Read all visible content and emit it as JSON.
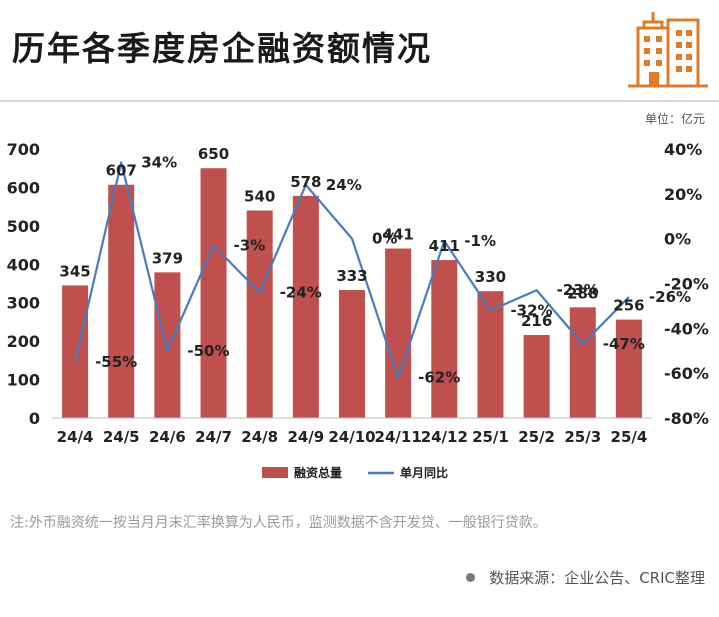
{
  "header": {
    "title": "历年各季度房企融资额情况",
    "unit": "单位：亿元"
  },
  "footer": {
    "note": "注:外币融资统一按当月月末汇率换算为人民币，监测数据不含开发贷、一般银行贷款。",
    "source": "数据来源：企业公告、CRIC整理"
  },
  "colors": {
    "bar": "#c0504d",
    "line": "#4a7bbf",
    "logo": "#e07b2a"
  },
  "icon": "building-logo-icon",
  "chart_data": {
    "type": "bar",
    "categories": [
      "24/4",
      "24/5",
      "24/6",
      "24/7",
      "24/8",
      "24/9",
      "24/10",
      "24/11",
      "24/12",
      "25/1",
      "25/2",
      "25/3",
      "25/4"
    ],
    "series": [
      {
        "name": "融资总量",
        "type": "bar",
        "axis": "left",
        "values": [
          345,
          607,
          379,
          650,
          540,
          578,
          333,
          441,
          411,
          330,
          216,
          288,
          256
        ],
        "labels": [
          "345",
          "607",
          "379",
          "650",
          "540",
          "578",
          "333",
          "441",
          "411",
          "330",
          "216",
          "288",
          "256"
        ]
      },
      {
        "name": "单月同比",
        "type": "line",
        "axis": "right",
        "values": [
          -55,
          34,
          -50,
          -3,
          -24,
          24,
          0,
          -62,
          -1,
          -32,
          -23,
          -47,
          -26
        ],
        "labels": [
          "-55%",
          "34%",
          "-50%",
          "-3%",
          "-24%",
          "24%",
          "0%",
          "-62%",
          "-1%",
          "-32%",
          "-23%",
          "-47%",
          "-26%"
        ]
      }
    ],
    "y_left": {
      "min": 0,
      "max": 700,
      "ticks": [
        "0",
        "100",
        "200",
        "300",
        "400",
        "500",
        "600",
        "700"
      ]
    },
    "y_right": {
      "min": -80,
      "max": 40,
      "ticks": [
        "-80%",
        "-60%",
        "-40%",
        "-20%",
        "0%",
        "20%",
        "40%"
      ]
    },
    "legend_position": "bottom",
    "grid": false
  }
}
